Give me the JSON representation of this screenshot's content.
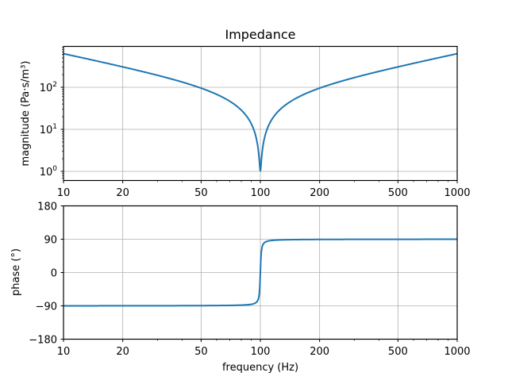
{
  "chart_data": [
    {
      "type": "line",
      "title": "Impedance",
      "xlabel": "",
      "ylabel": "magnitude (Pa·s/m³)",
      "xscale": "log",
      "yscale": "log",
      "xlim": [
        10,
        1000
      ],
      "ylim": [
        0.63,
        900
      ],
      "grid": true,
      "xticks": [
        "10",
        "20",
        "50",
        "100",
        "200",
        "500",
        "1000"
      ],
      "yticks": [
        "10^0",
        "10^1",
        "10^2"
      ],
      "series": [
        {
          "name": "magnitude",
          "color": "#1f77b4",
          "x": [
            10,
            20,
            50,
            80,
            100,
            125,
            200,
            500,
            1000
          ],
          "y": [
            630,
            305,
            95,
            36,
            1,
            36,
            95,
            305,
            630
          ]
        }
      ]
    },
    {
      "type": "line",
      "title": "",
      "xlabel": "frequency (Hz)",
      "ylabel": "phase (°)",
      "xscale": "log",
      "yscale": "linear",
      "xlim": [
        10,
        1000
      ],
      "ylim": [
        -180,
        180
      ],
      "grid": true,
      "xticks": [
        "10",
        "20",
        "50",
        "100",
        "200",
        "500",
        "1000"
      ],
      "yticks": [
        "−180",
        "−90",
        "0",
        "90",
        "180"
      ],
      "series": [
        {
          "name": "phase",
          "color": "#1f77b4",
          "x": [
            10,
            50,
            90,
            98,
            100,
            102,
            110,
            200,
            1000
          ],
          "y": [
            -89.9,
            -89.4,
            -87,
            -72,
            0,
            72,
            87,
            89.6,
            89.9
          ]
        }
      ]
    }
  ],
  "labels": {
    "title": "Impedance",
    "top_ylabel": "magnitude (Pa·s/m³)",
    "bottom_ylabel": "phase (°)",
    "xlabel": "frequency (Hz)",
    "xticks": [
      "10",
      "20",
      "50",
      "100",
      "200",
      "500",
      "1000"
    ],
    "phase_ticks": [
      "180",
      "90",
      "0",
      "−90",
      "−180"
    ]
  }
}
